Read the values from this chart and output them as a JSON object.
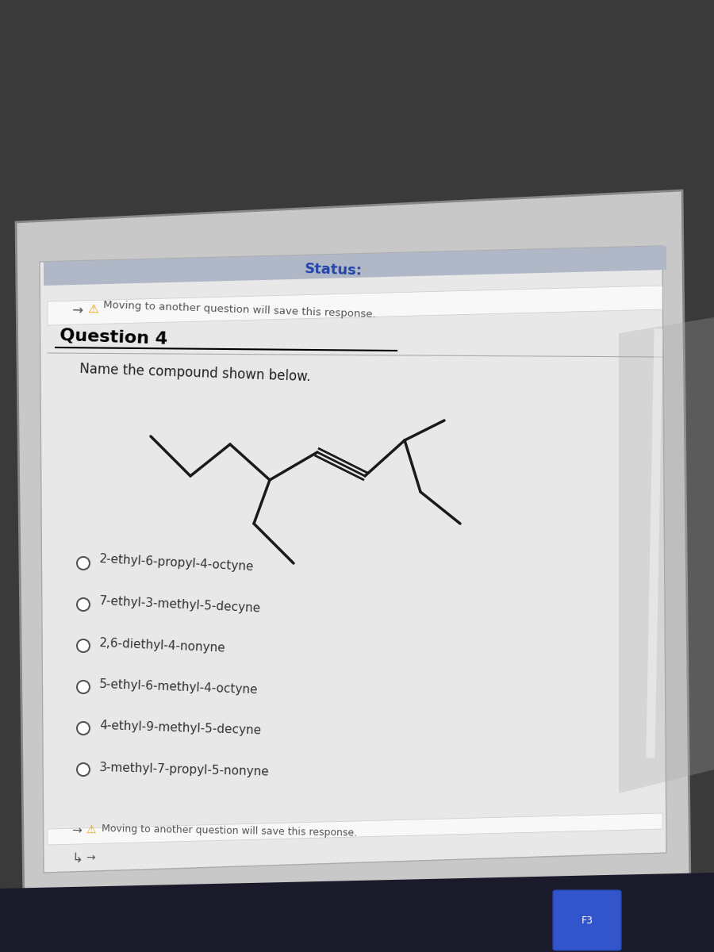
{
  "bg_color": "#3a3a3a",
  "screen_bg": "#c8c8c8",
  "content_bg": "#e8e8e8",
  "top_bar_text": "Status:",
  "warning_text": "Moving to another question will save this response.",
  "question_label": "Question 4",
  "question_text": "Name the compound shown below.",
  "options": [
    "2-ethyl-6-propyl-4-octyne",
    "7-ethyl-3-methyl-5-decyne",
    "2,6-diethyl-4-nonyne",
    "5-ethyl-6-methyl-4-octyne",
    "4-ethyl-9-methyl-5-decyne",
    "3-methyl-7-propyl-5-nonyne"
  ],
  "bottom_warning": "Moving to another question will save this response.",
  "title_color": "#000000",
  "option_color": "#333333",
  "warning_color": "#cc6600",
  "question_header_color": "#000000",
  "key_color": "#3355cc",
  "key_edge_color": "#2244aa"
}
